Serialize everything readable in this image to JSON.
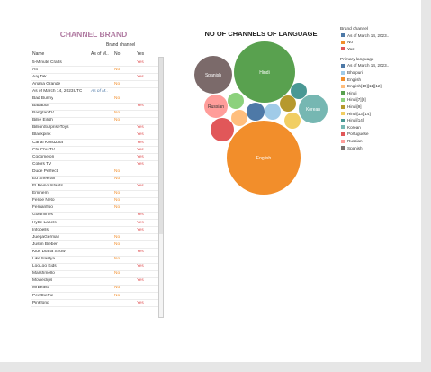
{
  "brand_table": {
    "title": "CHANNEL BRAND",
    "column_group": "Brand channel",
    "headers": {
      "name": "Name",
      "asof": "As of M..",
      "no": "No",
      "yes": "Yes"
    },
    "rows": [
      {
        "name": "5-Minute Crafts",
        "asof": "",
        "no": "",
        "yes": "Yes"
      },
      {
        "name": "A4",
        "asof": "",
        "no": "No",
        "yes": ""
      },
      {
        "name": "Aaj Tak",
        "asof": "",
        "no": "",
        "yes": "Yes"
      },
      {
        "name": "Ariana Grande",
        "asof": "",
        "no": "No",
        "yes": ""
      },
      {
        "name": "As of March 14, 2023UTC",
        "asof": "As of M..",
        "no": "",
        "yes": ""
      },
      {
        "name": "Bad Bunny",
        "asof": "",
        "no": "No",
        "yes": ""
      },
      {
        "name": "Badabun",
        "asof": "",
        "no": "",
        "yes": "Yes"
      },
      {
        "name": "BangtanTV",
        "asof": "",
        "no": "No",
        "yes": ""
      },
      {
        "name": "Billie Eilish",
        "asof": "",
        "no": "No",
        "yes": ""
      },
      {
        "name": "BillionSurpriseToys",
        "asof": "",
        "no": "",
        "yes": "Yes"
      },
      {
        "name": "Blackpink",
        "asof": "",
        "no": "",
        "yes": "Yes"
      },
      {
        "name": "Canal KondZilla",
        "asof": "",
        "no": "",
        "yes": "Yes"
      },
      {
        "name": "ChuChu TV",
        "asof": "",
        "no": "",
        "yes": "Yes"
      },
      {
        "name": "Cocomelon",
        "asof": "",
        "no": "",
        "yes": "Yes"
      },
      {
        "name": "Colors TV",
        "asof": "",
        "no": "",
        "yes": "Yes"
      },
      {
        "name": "Dude Perfect",
        "asof": "",
        "no": "No",
        "yes": ""
      },
      {
        "name": "Ed Sheeran",
        "asof": "",
        "no": "No",
        "yes": ""
      },
      {
        "name": "El Reino Infantil",
        "asof": "",
        "no": "",
        "yes": "Yes"
      },
      {
        "name": "Eminem",
        "asof": "",
        "no": "No",
        "yes": ""
      },
      {
        "name": "Felipe Neto",
        "asof": "",
        "no": "No",
        "yes": ""
      },
      {
        "name": "Fernanfloo",
        "asof": "",
        "no": "No",
        "yes": ""
      },
      {
        "name": "Goldmines",
        "asof": "",
        "no": "",
        "yes": "Yes"
      },
      {
        "name": "Hybe Labels",
        "asof": "",
        "no": "",
        "yes": "Yes"
      },
      {
        "name": "Infobells",
        "asof": "",
        "no": "",
        "yes": "Yes"
      },
      {
        "name": "JuegaGerman",
        "asof": "",
        "no": "No",
        "yes": ""
      },
      {
        "name": "Justin Bieber",
        "asof": "",
        "no": "No",
        "yes": ""
      },
      {
        "name": "Kids Diana Show",
        "asof": "",
        "no": "",
        "yes": "Yes"
      },
      {
        "name": "Like Nastya",
        "asof": "",
        "no": "No",
        "yes": ""
      },
      {
        "name": "LooLoo Kids",
        "asof": "",
        "no": "",
        "yes": "Yes"
      },
      {
        "name": "Marshmello",
        "asof": "",
        "no": "No",
        "yes": ""
      },
      {
        "name": "Movieclips",
        "asof": "",
        "no": "",
        "yes": "Yes"
      },
      {
        "name": "MrBeast",
        "asof": "",
        "no": "No",
        "yes": ""
      },
      {
        "name": "PewDiePie",
        "asof": "",
        "no": "No",
        "yes": ""
      },
      {
        "name": "Pinkfong",
        "asof": "",
        "no": "",
        "yes": "Yes"
      }
    ]
  },
  "bubble_chart": {
    "title": "NO OF CHANNELS OF LANGUAGE",
    "bubbles": [
      {
        "label": "Hindi",
        "color": "#59a14f"
      },
      {
        "label": "Spanish",
        "color": "#7b6a6a"
      },
      {
        "label": "Russian",
        "color": "#ff9d9a"
      },
      {
        "label": "Korean",
        "color": "#76b7b2"
      },
      {
        "label": "English",
        "color": "#f28e2b"
      },
      {
        "label": "",
        "color": "#8cd17d"
      },
      {
        "label": "",
        "color": "#ffbe7d"
      },
      {
        "label": "",
        "color": "#4e79a7"
      },
      {
        "label": "",
        "color": "#a0cbe8"
      },
      {
        "label": "",
        "color": "#b6992d"
      },
      {
        "label": "",
        "color": "#499894"
      },
      {
        "label": "",
        "color": "#f1ce63"
      },
      {
        "label": "",
        "color": "#e15759"
      }
    ]
  },
  "legend": {
    "brand_title": "Brand channel",
    "brand_items": [
      {
        "label": "As of March 14, 2023..",
        "color": "#4e79a7"
      },
      {
        "label": "No",
        "color": "#f28e2b"
      },
      {
        "label": "Yes",
        "color": "#e15759"
      }
    ],
    "language_title": "Primary language",
    "language_items": [
      {
        "label": "As of March 14, 2023..",
        "color": "#4e79a7"
      },
      {
        "label": "Bhojpuri",
        "color": "#a0cbe8"
      },
      {
        "label": "English",
        "color": "#f28e2b"
      },
      {
        "label": "English[10][11][12]",
        "color": "#ffbe7d"
      },
      {
        "label": "Hindi",
        "color": "#59a14f"
      },
      {
        "label": "Hindi[7][8]",
        "color": "#8cd17d"
      },
      {
        "label": "Hindi[9]",
        "color": "#b6992d"
      },
      {
        "label": "Hindi[13][14]",
        "color": "#f1ce63"
      },
      {
        "label": "Hindi[14]",
        "color": "#499894"
      },
      {
        "label": "Korean",
        "color": "#76b7b2"
      },
      {
        "label": "Portuguese",
        "color": "#e15759"
      },
      {
        "label": "Russian",
        "color": "#ff9d9a"
      },
      {
        "label": "Spanish",
        "color": "#79706e"
      }
    ]
  }
}
